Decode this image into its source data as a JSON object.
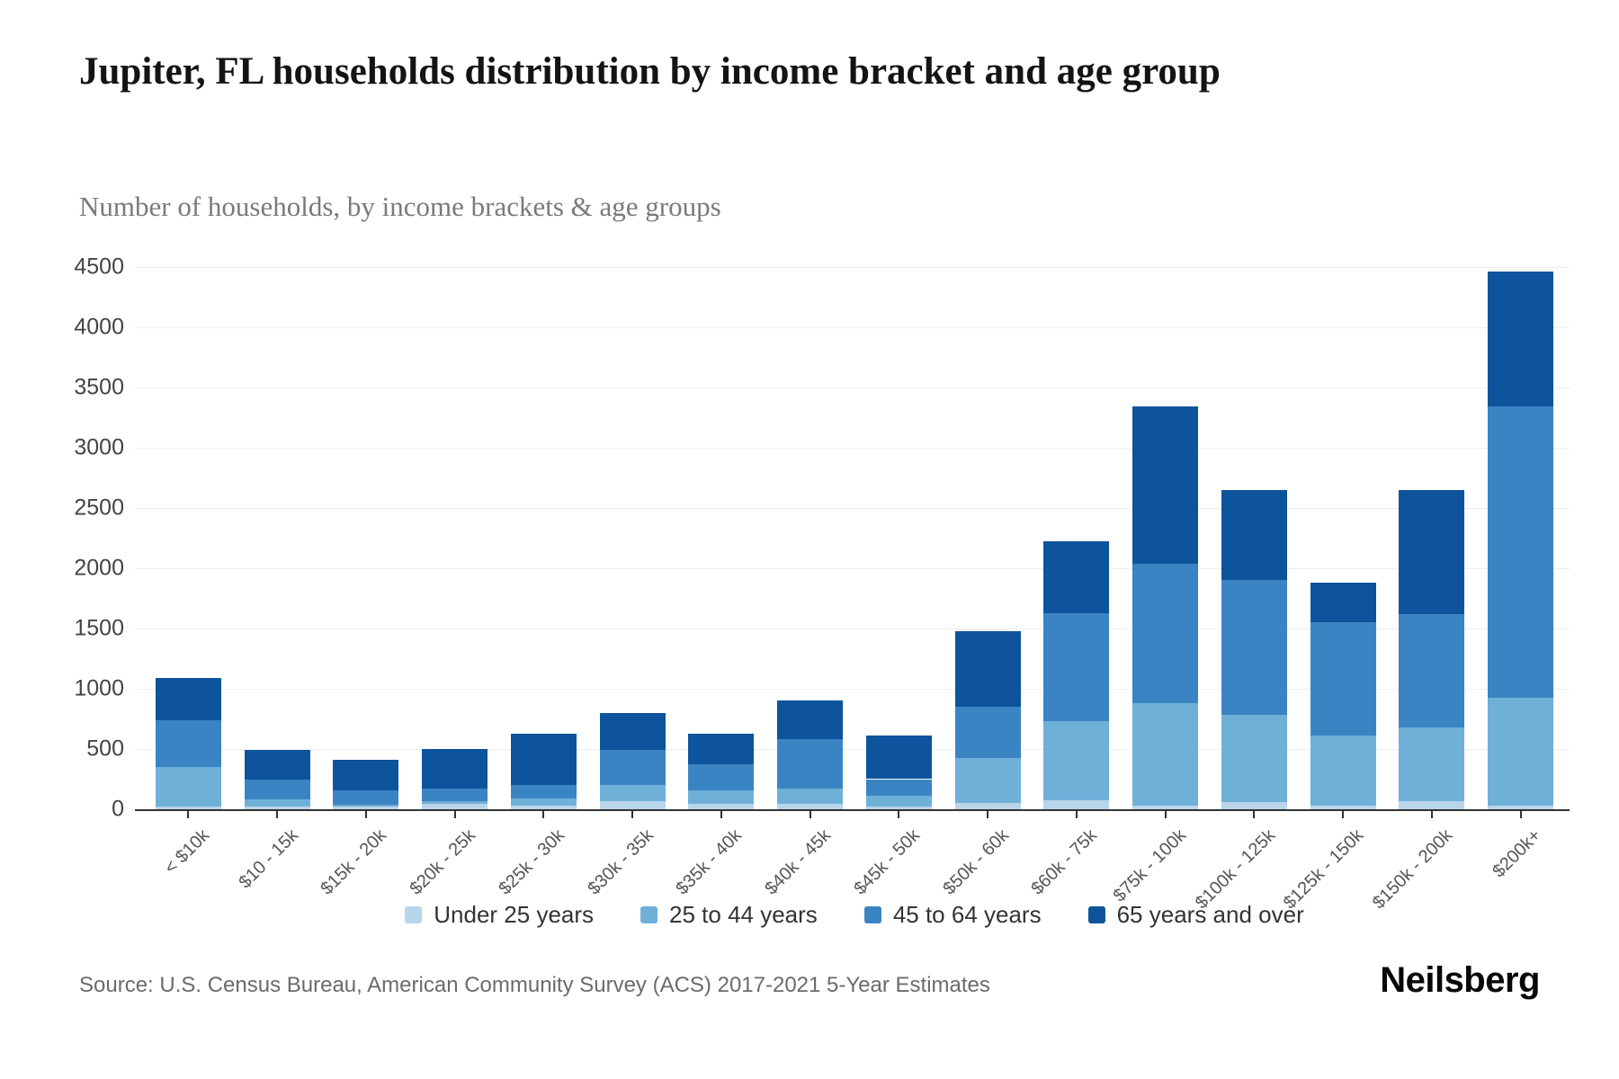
{
  "header": {
    "title": "Jupiter, FL households distribution by income bracket and age group",
    "subtitle": "Number of households, by income brackets & age groups"
  },
  "chart_data": {
    "type": "bar",
    "stacked": true,
    "title": "Jupiter, FL households distribution by income bracket and age group",
    "xlabel": "",
    "ylabel": "",
    "ylim": [
      0,
      4500
    ],
    "ytick_step": 500,
    "grid": true,
    "legend_position": "bottom",
    "categories": [
      "< $10k",
      "$10 - 15k",
      "$15k - 20k",
      "$20k - 25k",
      "$25k - 30k",
      "$30k - 35k",
      "$35k - 40k",
      "$40k - 45k",
      "$45k - 50k",
      "$50k - 60k",
      "$60k - 75k",
      "$75k - 100k",
      "$100k - 125k",
      "$125k - 150k",
      "$150k - 200k",
      "$200k+"
    ],
    "series": [
      {
        "name": "Under 25 years",
        "color": "#b9d5ea",
        "values": [
          20,
          20,
          20,
          45,
          30,
          70,
          45,
          45,
          25,
          50,
          75,
          30,
          60,
          30,
          70,
          30
        ]
      },
      {
        "name": "25 to 44 years",
        "color": "#6fb0d9",
        "values": [
          330,
          65,
          20,
          25,
          60,
          130,
          115,
          125,
          90,
          375,
          655,
          850,
          725,
          580,
          610,
          895
        ]
      },
      {
        "name": "45 to 64 years",
        "color": "#3a84c3",
        "values": [
          390,
          160,
          120,
          105,
          110,
          290,
          215,
          410,
          135,
          425,
          900,
          1155,
          1120,
          945,
          940,
          2420
        ]
      },
      {
        "name": "65 years and over",
        "color": "#0d549c",
        "values": [
          350,
          245,
          250,
          325,
          430,
          310,
          250,
          325,
          365,
          630,
          595,
          1305,
          745,
          325,
          1030,
          1120
        ]
      }
    ],
    "totals": [
      1090,
      490,
      410,
      500,
      630,
      800,
      625,
      905,
      615,
      1480,
      2225,
      3340,
      2650,
      1880,
      2650,
      4465
    ]
  },
  "footer": {
    "source": "Source: U.S. Census Bureau, American Community Survey (ACS) 2017-2021 5-Year Estimates",
    "brand": "Neilsberg"
  },
  "colors": {
    "grid": "#ededed",
    "axis_line": "#333333",
    "axis_text": "#555555",
    "title_text": "#141414",
    "subtitle_text": "#7a7a7a"
  }
}
